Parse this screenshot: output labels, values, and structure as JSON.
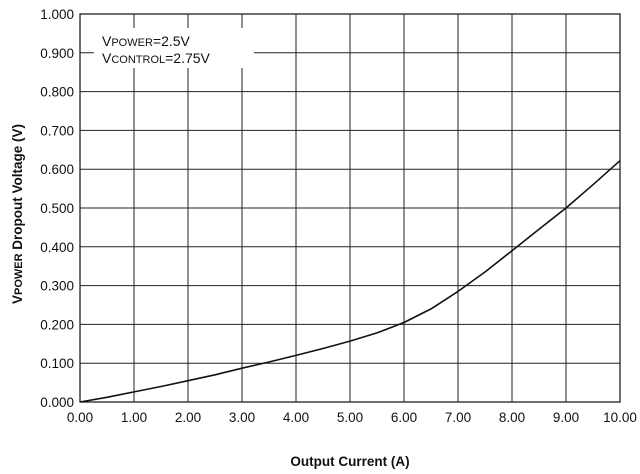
{
  "chart_data": {
    "type": "line",
    "xlabel": "Output Current (A)",
    "ylabel_prefix": "V",
    "ylabel_subscript": "POWER",
    "ylabel_rest": " Dropout Voltage (V)",
    "xlim": [
      0,
      10
    ],
    "ylim": [
      0,
      1
    ],
    "grid": true,
    "x_ticks": [
      "0.00",
      "1.00",
      "2.00",
      "3.00",
      "4.00",
      "5.00",
      "6.00",
      "7.00",
      "8.00",
      "9.00",
      "10.00"
    ],
    "y_ticks": [
      "0.000",
      "0.100",
      "0.200",
      "0.300",
      "0.400",
      "0.500",
      "0.600",
      "0.700",
      "0.800",
      "0.900",
      "1.000"
    ],
    "annotations": [
      {
        "prefix": "V",
        "subscript": "POWER",
        "suffix": "=2.5V"
      },
      {
        "prefix": "V",
        "subscript": "CONTROL",
        "suffix": "=2.75V"
      }
    ],
    "series": [
      {
        "x": [
          0,
          0.5,
          1,
          1.5,
          2,
          2.5,
          3,
          3.5,
          4,
          4.5,
          5,
          5.5,
          6,
          6.5,
          7,
          7.5,
          8,
          8.5,
          9,
          9.5,
          10
        ],
        "y": [
          0,
          0.012,
          0.026,
          0.04,
          0.055,
          0.07,
          0.087,
          0.103,
          0.12,
          0.138,
          0.157,
          0.178,
          0.205,
          0.24,
          0.285,
          0.335,
          0.39,
          0.445,
          0.5,
          0.56,
          0.622
        ]
      }
    ]
  }
}
